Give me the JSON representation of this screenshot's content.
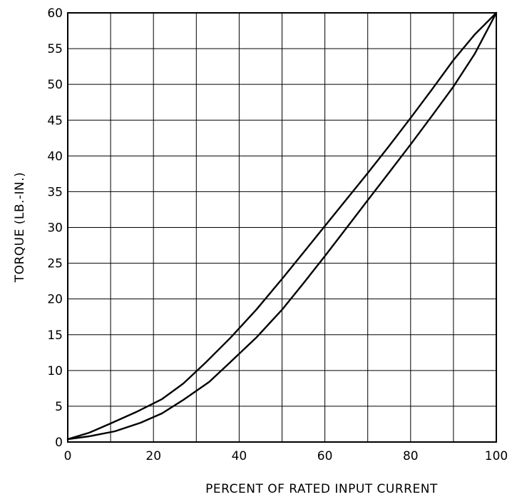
{
  "chart_data": {
    "type": "line",
    "title": "",
    "xlabel": "PERCENT OF RATED INPUT CURRENT",
    "ylabel": "TORQUE   (LB.-IN.)",
    "xlim": [
      0,
      100
    ],
    "ylim": [
      0,
      60
    ],
    "x_ticks": [
      0,
      20,
      40,
      60,
      80,
      100
    ],
    "y_ticks": [
      0,
      5,
      10,
      15,
      20,
      25,
      30,
      35,
      40,
      45,
      50,
      55,
      60
    ],
    "x_tick_labels": [
      "0",
      "20",
      "40",
      "60",
      "80",
      "100"
    ],
    "y_tick_labels": [
      "0",
      "5",
      "10",
      "15",
      "20",
      "25",
      "30",
      "35",
      "40",
      "45",
      "50",
      "55",
      "60"
    ],
    "x_grid_step": 10,
    "y_grid_step": 5,
    "grid": true,
    "line_color": "#000000",
    "series": [
      {
        "x": [
          0,
          5,
          10,
          16,
          22,
          27,
          32,
          38,
          44,
          50,
          55,
          60,
          65,
          70,
          75,
          80,
          85,
          90,
          95,
          100
        ],
        "values": [
          0.4,
          1.3,
          2.6,
          4.2,
          6,
          8.2,
          11,
          14.6,
          18.5,
          22.8,
          26.5,
          30.2,
          33.9,
          37.6,
          41.4,
          45.3,
          49.3,
          53.4,
          57,
          60
        ]
      },
      {
        "x": [
          0,
          5,
          11,
          17,
          22,
          27,
          33,
          38,
          44,
          50,
          55,
          60,
          65,
          70,
          75,
          80,
          85,
          90,
          95,
          100
        ],
        "values": [
          0.4,
          0.8,
          1.5,
          2.7,
          4,
          5.9,
          8.4,
          11.2,
          14.6,
          18.5,
          22.2,
          26,
          29.9,
          33.8,
          37.7,
          41.6,
          45.6,
          49.7,
          54.3,
          60
        ]
      }
    ]
  }
}
